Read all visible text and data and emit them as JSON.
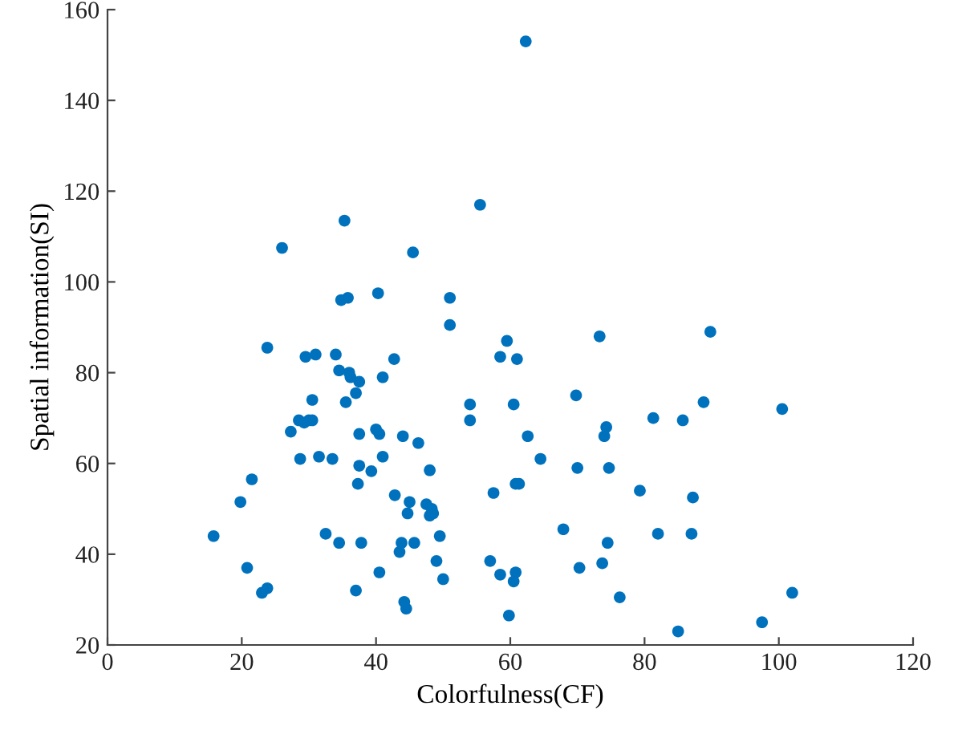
{
  "chart_data": {
    "type": "scatter",
    "xlabel": "Colorfulness(CF)",
    "ylabel": "Spatial information(SI)",
    "xlim": [
      0,
      120
    ],
    "xticks": [
      0,
      20,
      40,
      60,
      80,
      100,
      120
    ],
    "ylim": [
      20,
      160
    ],
    "yticks": [
      20,
      40,
      60,
      80,
      100,
      120,
      140,
      160
    ],
    "grid": false,
    "marker": "circle",
    "series": [
      {
        "color": "#0072bd",
        "x": [
          15.8,
          19.8,
          20.8,
          21.5,
          23,
          23.8,
          23.8,
          26,
          27.3,
          28.5,
          28.7,
          29.3,
          29.5,
          30,
          30.5,
          30.5,
          31,
          31.5,
          32.5,
          33.5,
          34,
          34.5,
          34.5,
          34.8,
          35.3,
          35.5,
          35.8,
          36,
          36.2,
          37,
          37,
          37.3,
          37.5,
          37.5,
          37.5,
          37.8,
          39.3,
          40,
          40.3,
          40.5,
          40.5,
          41,
          41,
          42.7,
          42.8,
          43.5,
          43.8,
          44,
          44.2,
          44.5,
          44.7,
          45,
          45.5,
          45.7,
          46.3,
          47.5,
          48,
          48,
          48.3,
          48.5,
          49,
          49.5,
          50,
          51,
          51,
          54,
          54,
          55.5,
          57,
          57.5,
          58.5,
          58.5,
          59.5,
          59.8,
          60.5,
          60.5,
          60.8,
          60.8,
          61,
          61.3,
          62.3,
          62.6,
          64.5,
          67.9,
          69.8,
          70,
          70.3,
          73.3,
          73.7,
          74,
          74.3,
          74.5,
          74.7,
          76.3,
          79.3,
          81.3,
          82,
          85,
          85.7,
          87,
          87.2,
          88.8,
          89.8,
          97.5,
          100.5,
          102
        ],
        "values": [
          44,
          51.5,
          37,
          56.5,
          31.5,
          32.5,
          85.5,
          107.5,
          67,
          69.5,
          61,
          69,
          83.5,
          69.5,
          74,
          69.5,
          84,
          61.5,
          44.5,
          61,
          84,
          80.5,
          42.5,
          96,
          113.5,
          73.5,
          96.5,
          80,
          79,
          75.5,
          32,
          55.5,
          66.5,
          78,
          59.5,
          42.5,
          58.3,
          67.5,
          97.5,
          66.5,
          36,
          61.5,
          79,
          83,
          53,
          40.5,
          42.5,
          66,
          29.5,
          28,
          49,
          51.5,
          106.5,
          42.5,
          64.5,
          51,
          48.5,
          58.5,
          50,
          49,
          38.5,
          44,
          34.5,
          96.5,
          90.5,
          73,
          69.5,
          117,
          38.5,
          53.5,
          83.5,
          35.5,
          87,
          26.5,
          34,
          73,
          55.5,
          36,
          83,
          55.5,
          153,
          66,
          61,
          45.5,
          75,
          59,
          37,
          88,
          38,
          66,
          68,
          42.5,
          59,
          30.5,
          54,
          70,
          44.5,
          23,
          69.5,
          44.5,
          52.5,
          73.5,
          89,
          25,
          72,
          31.5
        ]
      }
    ]
  }
}
